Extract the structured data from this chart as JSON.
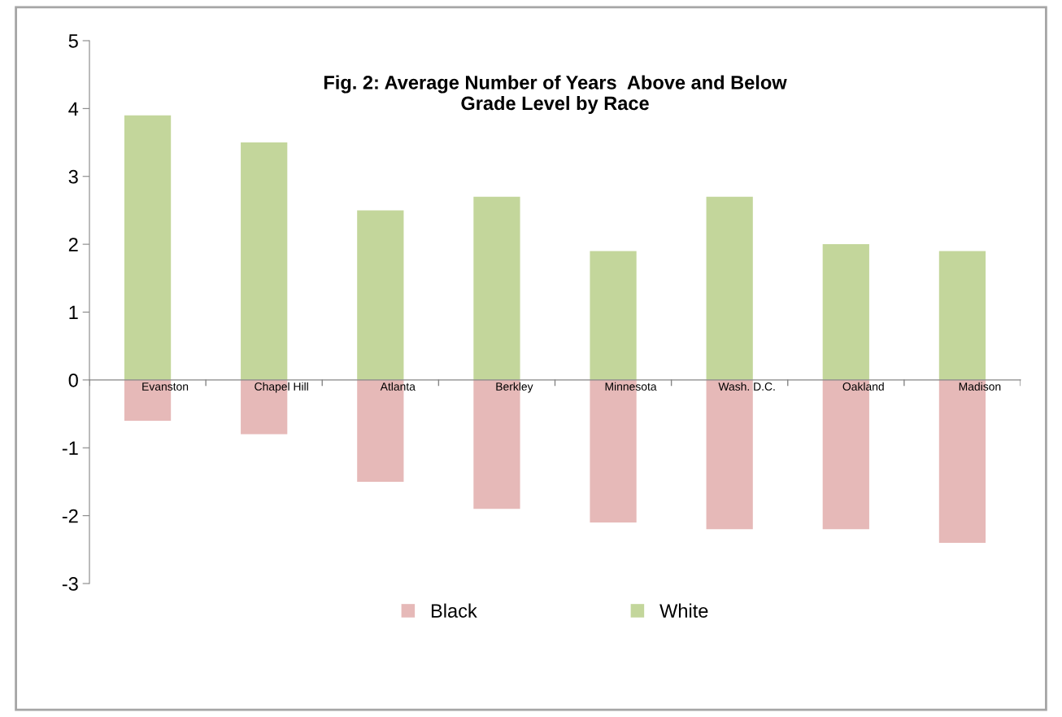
{
  "chart_data": {
    "type": "bar",
    "title": "Fig. 2: Average Number of Years  Above and Below\nGrade Level by Race",
    "categories": [
      "Evanston",
      "Chapel Hill",
      "Atlanta",
      "Berkley",
      "Minnesota",
      "Wash. D.C.",
      "Oakland",
      "Madison"
    ],
    "stacked": true,
    "series": [
      {
        "name": "Black",
        "color": "#e6b9b8",
        "values": [
          -0.6,
          -0.8,
          -1.5,
          -1.9,
          -2.1,
          -2.2,
          -2.2,
          -2.4
        ]
      },
      {
        "name": "White",
        "color": "#c3d69b",
        "values": [
          3.9,
          3.5,
          2.5,
          2.7,
          1.9,
          2.7,
          2.0,
          1.9
        ]
      }
    ],
    "ylim": [
      -3,
      5
    ],
    "yticks": [
      -3,
      -2,
      -1,
      0,
      1,
      2,
      3,
      4,
      5
    ],
    "grid": false,
    "legend": "bottom"
  }
}
